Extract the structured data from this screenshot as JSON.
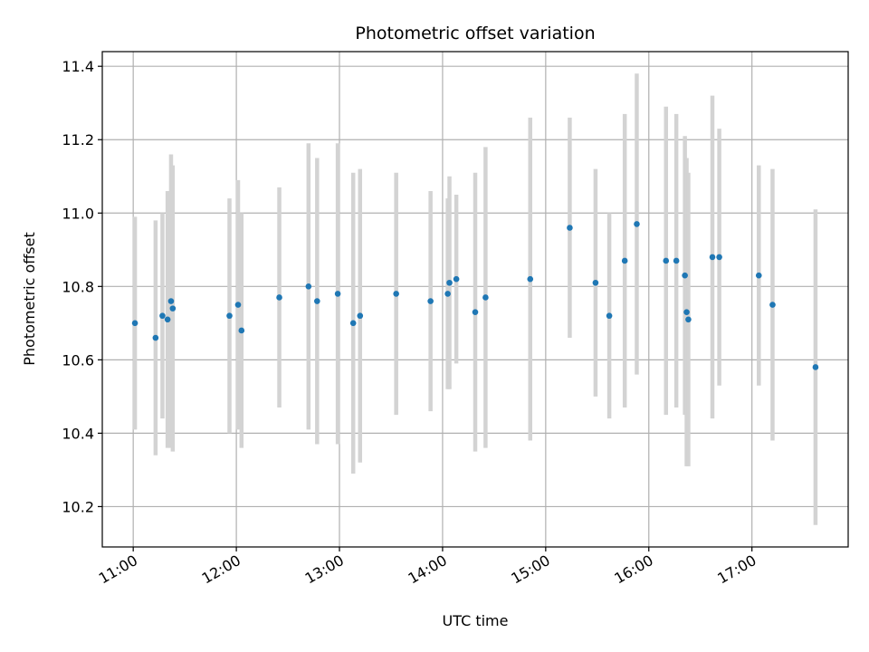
{
  "chart_data": {
    "type": "scatter",
    "title": "Photometric offset variation",
    "xlabel": "UTC time",
    "ylabel": "Photometric offset",
    "xlim": [
      "10:42",
      "17:56"
    ],
    "ylim": [
      10.09,
      11.44
    ],
    "xticks": [
      "11:00",
      "12:00",
      "13:00",
      "14:00",
      "15:00",
      "16:00",
      "17:00"
    ],
    "yticks": [
      "10.2",
      "10.4",
      "10.6",
      "10.8",
      "11.0",
      "11.2",
      "11.4"
    ],
    "grid": true,
    "colors": {
      "point": "#1f77b4",
      "errorbar": "#d3d3d3",
      "grid": "#b0b0b0"
    },
    "points": [
      {
        "t": "11:01",
        "y": 10.7,
        "err": 0.29
      },
      {
        "t": "11:13",
        "y": 10.66,
        "err": 0.32
      },
      {
        "t": "11:17",
        "y": 10.72,
        "err": 0.28
      },
      {
        "t": "11:20",
        "y": 10.71,
        "err": 0.35
      },
      {
        "t": "11:22",
        "y": 10.76,
        "err": 0.4
      },
      {
        "t": "11:23",
        "y": 10.74,
        "err": 0.39
      },
      {
        "t": "11:56",
        "y": 10.72,
        "err": 0.32
      },
      {
        "t": "12:01",
        "y": 10.75,
        "err": 0.34
      },
      {
        "t": "12:03",
        "y": 10.68,
        "err": 0.32
      },
      {
        "t": "12:25",
        "y": 10.77,
        "err": 0.3
      },
      {
        "t": "12:42",
        "y": 10.8,
        "err": 0.39
      },
      {
        "t": "12:47",
        "y": 10.76,
        "err": 0.39
      },
      {
        "t": "12:59",
        "y": 10.78,
        "err": 0.41
      },
      {
        "t": "13:08",
        "y": 10.7,
        "err": 0.41
      },
      {
        "t": "13:12",
        "y": 10.72,
        "err": 0.4
      },
      {
        "t": "13:33",
        "y": 10.78,
        "err": 0.33
      },
      {
        "t": "13:53",
        "y": 10.76,
        "err": 0.3
      },
      {
        "t": "14:03",
        "y": 10.78,
        "err": 0.26
      },
      {
        "t": "14:04",
        "y": 10.81,
        "err": 0.29
      },
      {
        "t": "14:08",
        "y": 10.82,
        "err": 0.23
      },
      {
        "t": "14:19",
        "y": 10.73,
        "err": 0.38
      },
      {
        "t": "14:25",
        "y": 10.77,
        "err": 0.41
      },
      {
        "t": "14:51",
        "y": 10.82,
        "err": 0.44
      },
      {
        "t": "15:14",
        "y": 10.96,
        "err": 0.3
      },
      {
        "t": "15:29",
        "y": 10.81,
        "err": 0.31
      },
      {
        "t": "15:37",
        "y": 10.72,
        "err": 0.28
      },
      {
        "t": "15:46",
        "y": 10.87,
        "err": 0.4
      },
      {
        "t": "15:53",
        "y": 10.97,
        "err": 0.41
      },
      {
        "t": "16:10",
        "y": 10.87,
        "err": 0.42
      },
      {
        "t": "16:16",
        "y": 10.87,
        "err": 0.4
      },
      {
        "t": "16:21",
        "y": 10.83,
        "err": 0.38
      },
      {
        "t": "16:22",
        "y": 10.73,
        "err": 0.42
      },
      {
        "t": "16:23",
        "y": 10.71,
        "err": 0.4
      },
      {
        "t": "16:37",
        "y": 10.88,
        "err": 0.44
      },
      {
        "t": "16:41",
        "y": 10.88,
        "err": 0.35
      },
      {
        "t": "17:04",
        "y": 10.83,
        "err": 0.3
      },
      {
        "t": "17:12",
        "y": 10.75,
        "err": 0.37
      },
      {
        "t": "17:37",
        "y": 10.58,
        "err": 0.43
      }
    ]
  }
}
